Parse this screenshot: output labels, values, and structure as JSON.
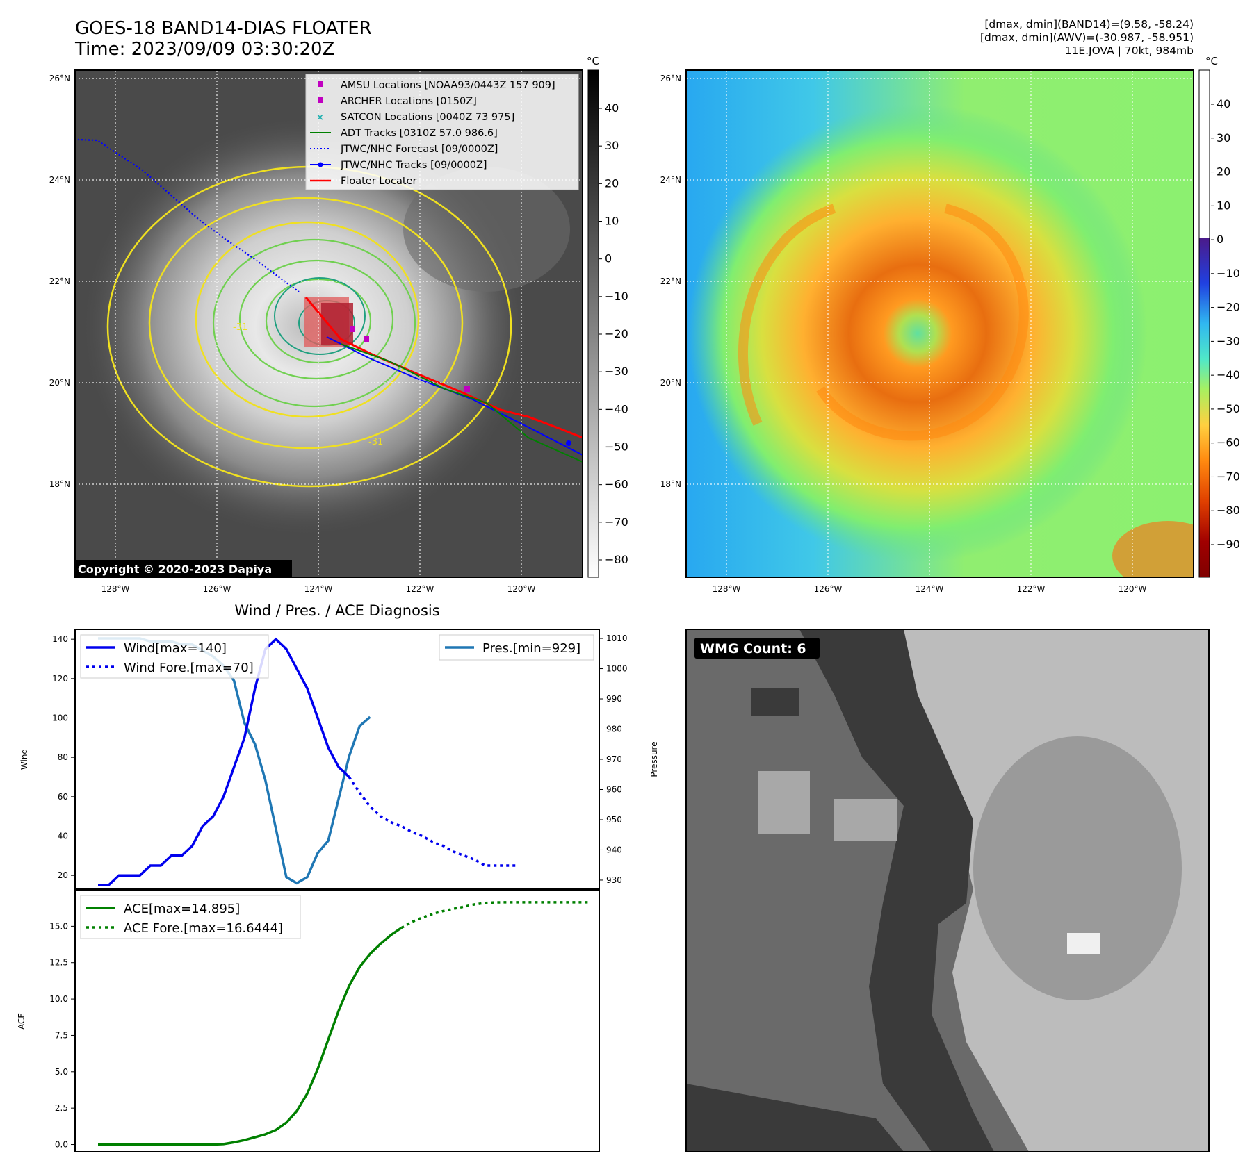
{
  "header": {
    "title_line1": "GOES-18 BAND14-DIAS FLOATER",
    "title_line2": "Time: 2023/09/09 03:30:20Z",
    "info_line1": "[dmax, dmin](BAND14)=(9.58, -58.24)",
    "info_line2": "[dmax, dmin](AWV)=(-30.987, -58.951)",
    "info_line3": "11E.JOVA | 70kt, 984mb"
  },
  "map_axes": {
    "lat_ticks": [
      "26°N",
      "24°N",
      "22°N",
      "20°N",
      "18°N"
    ],
    "lon_ticks": [
      "128°W",
      "126°W",
      "124°W",
      "122°W",
      "120°W"
    ],
    "lat_range": [
      16.4,
      26.2
    ],
    "lon_range": [
      -128.8,
      -118.9
    ]
  },
  "ir_panel": {
    "copyright": "Copyright © 2020-2023 Dapiya",
    "contour_label": "-31",
    "colorbar_unit": "°C",
    "colorbar_ticks": [
      "40",
      "30",
      "20",
      "10",
      "0",
      "−10",
      "−20",
      "−30",
      "−40",
      "−50",
      "−60",
      "−70",
      "−80"
    ],
    "legend": [
      {
        "label": "AMSU Locations [NOAA93/0443Z 157 909]",
        "color": "#c000c0",
        "marker": "square"
      },
      {
        "label": "ARCHER Locations [0150Z]",
        "color": "#c000c0",
        "marker": "square"
      },
      {
        "label": "SATCON Locations [0040Z 73 975]",
        "color": "#20b0b0",
        "marker": "x"
      },
      {
        "label": "ADT Tracks [0310Z 57.0 986.6]",
        "color": "#008000",
        "marker": "line"
      },
      {
        "label": "JTWC/NHC Forecast [09/0000Z]",
        "color": "#0000ff",
        "marker": "dotted"
      },
      {
        "label": "JTWC/NHC Tracks [09/0000Z]",
        "color": "#0000ff",
        "marker": "line-dot"
      },
      {
        "label": "Floater Locater",
        "color": "#ff0000",
        "marker": "line"
      }
    ]
  },
  "awv_panel": {
    "colorbar_unit": "°C",
    "colorbar_ticks": [
      "40",
      "30",
      "20",
      "10",
      "0",
      "−10",
      "−20",
      "−30",
      "−40",
      "−50",
      "−60",
      "−70",
      "−80",
      "−90"
    ]
  },
  "wmg_panel": {
    "badge": "WMG Count: 6"
  },
  "chart_data": [
    {
      "type": "line",
      "title": "Wind / Pres. / ACE Diagnosis",
      "ylabel": "Wind",
      "y2label": "Pressure",
      "ylim": [
        13,
        145
      ],
      "y2lim": [
        927,
        1013
      ],
      "yticks": [
        20,
        40,
        60,
        80,
        100,
        120,
        140
      ],
      "y2ticks": [
        930,
        940,
        950,
        960,
        970,
        980,
        990,
        1000,
        1010
      ],
      "series": [
        {
          "name": "Wind[max=140]",
          "axis": "left",
          "style": "solid",
          "color": "#0000ee",
          "values": [
            15,
            15,
            20,
            20,
            20,
            25,
            25,
            30,
            30,
            35,
            45,
            50,
            60,
            75,
            90,
            115,
            135,
            140,
            135,
            125,
            115,
            100,
            85,
            75,
            70
          ]
        },
        {
          "name": "Wind Fore.[max=70]",
          "axis": "left",
          "style": "dotted",
          "color": "#0000ee",
          "values": [
            70,
            62,
            55,
            50,
            47,
            45,
            42,
            40,
            37,
            35,
            32,
            30,
            28,
            25,
            25,
            25,
            25
          ]
        },
        {
          "name": "Pres.[min=929]",
          "axis": "right",
          "style": "solid",
          "color": "#1f77b4",
          "values": [
            1010,
            1010,
            1010,
            1010,
            1010,
            1009,
            1009,
            1009,
            1008,
            1008,
            1006,
            1004,
            1001,
            996,
            982,
            975,
            963,
            947,
            931,
            929,
            931,
            939,
            943,
            957,
            971,
            981,
            984
          ]
        }
      ]
    },
    {
      "type": "line",
      "ylabel": "ACE",
      "ylim": [
        -0.5,
        17.5
      ],
      "yticks": [
        0.0,
        2.5,
        5.0,
        7.5,
        10.0,
        12.5,
        15.0
      ],
      "series": [
        {
          "name": "ACE[max=14.895]",
          "style": "solid",
          "color": "#008000",
          "values": [
            0,
            0,
            0,
            0,
            0,
            0,
            0,
            0,
            0,
            0,
            0,
            0,
            0.03,
            0.15,
            0.3,
            0.5,
            0.7,
            1.0,
            1.5,
            2.3,
            3.5,
            5.2,
            7.2,
            9.2,
            10.9,
            12.2,
            13.1,
            13.8,
            14.4,
            14.895
          ]
        },
        {
          "name": "ACE Fore.[max=16.6444]",
          "style": "dotted",
          "color": "#008000",
          "values": [
            14.895,
            15.3,
            15.6,
            15.85,
            16.05,
            16.2,
            16.35,
            16.5,
            16.6,
            16.64,
            16.6444,
            16.6444,
            16.6444,
            16.6444,
            16.6444,
            16.6444,
            16.6444,
            16.6444,
            16.6444
          ]
        }
      ]
    }
  ]
}
